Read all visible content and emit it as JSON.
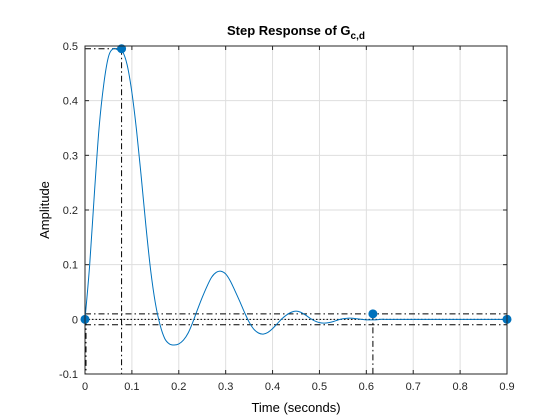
{
  "chart_data": {
    "type": "line",
    "title_main": "Step Response of G",
    "title_subscript": "c,d",
    "xlabel": "Time (seconds)",
    "ylabel": "Amplitude",
    "xlim": [
      0,
      0.9
    ],
    "ylim": [
      -0.1,
      0.5
    ],
    "xticks": [
      0,
      0.1,
      0.2,
      0.3,
      0.4,
      0.5,
      0.6,
      0.7,
      0.8,
      0.9
    ],
    "xtick_labels": [
      "0",
      "0.1",
      "0.2",
      "0.3",
      "0.4",
      "0.5",
      "0.6",
      "0.7",
      "0.8",
      "0.9"
    ],
    "yticks": [
      -0.1,
      0,
      0.1,
      0.2,
      0.3,
      0.4,
      0.5
    ],
    "ytick_labels": [
      "-0.1",
      "0",
      "0.1",
      "0.2",
      "0.3",
      "0.4",
      "0.5"
    ],
    "grid": true,
    "line_color": "#0072bd",
    "series": [
      {
        "x": [
          0,
          0.01,
          0.02,
          0.03,
          0.04,
          0.05,
          0.06,
          0.07,
          0.08,
          0.09,
          0.1,
          0.11,
          0.12,
          0.13,
          0.14,
          0.15,
          0.16,
          0.17,
          0.18,
          0.19,
          0.2,
          0.21,
          0.22,
          0.23,
          0.24,
          0.25,
          0.26,
          0.27,
          0.28,
          0.29,
          0.3,
          0.31,
          0.32,
          0.33,
          0.34,
          0.35,
          0.36,
          0.37,
          0.38,
          0.39,
          0.4,
          0.41,
          0.42,
          0.43,
          0.44,
          0.45,
          0.46,
          0.47,
          0.48,
          0.49,
          0.5,
          0.51,
          0.52,
          0.53,
          0.54,
          0.55,
          0.56,
          0.57,
          0.58,
          0.59,
          0.6,
          0.61,
          0.62,
          0.63,
          0.64,
          0.65,
          0.66,
          0.67,
          0.68,
          0.69,
          0.7,
          0.72,
          0.74,
          0.76,
          0.78,
          0.8,
          0.82,
          0.84,
          0.86,
          0.88,
          0.9
        ],
        "y": [
          0,
          0.1,
          0.23,
          0.35,
          0.43,
          0.48,
          0.495,
          0.493,
          0.49,
          0.465,
          0.415,
          0.345,
          0.26,
          0.17,
          0.09,
          0.03,
          -0.01,
          -0.035,
          -0.045,
          -0.047,
          -0.045,
          -0.038,
          -0.025,
          -0.005,
          0.018,
          0.04,
          0.06,
          0.077,
          0.086,
          0.088,
          0.083,
          0.07,
          0.052,
          0.033,
          0.013,
          -0.005,
          -0.018,
          -0.025,
          -0.027,
          -0.024,
          -0.017,
          -0.008,
          0.001,
          0.008,
          0.013,
          0.015,
          0.013,
          0.008,
          0.002,
          -0.003,
          -0.006,
          -0.007,
          -0.006,
          -0.004,
          -0.001,
          0.001,
          0.002,
          0.002,
          0.001,
          0,
          -0.001,
          -0.001,
          -0.001,
          0,
          0,
          0,
          0,
          0,
          0,
          0,
          0,
          0,
          0,
          0,
          0,
          0,
          0,
          0,
          0,
          0,
          0
        ]
      }
    ],
    "characteristic_points": [
      {
        "x": 0,
        "y": 0
      },
      {
        "x": 0.078,
        "y": 0.495
      },
      {
        "x": 0.614,
        "y": 0.01
      },
      {
        "x": 0.9,
        "y": 0
      }
    ],
    "settling_band": {
      "upper": 0.01,
      "lower": -0.01
    },
    "steady_state": 0
  }
}
